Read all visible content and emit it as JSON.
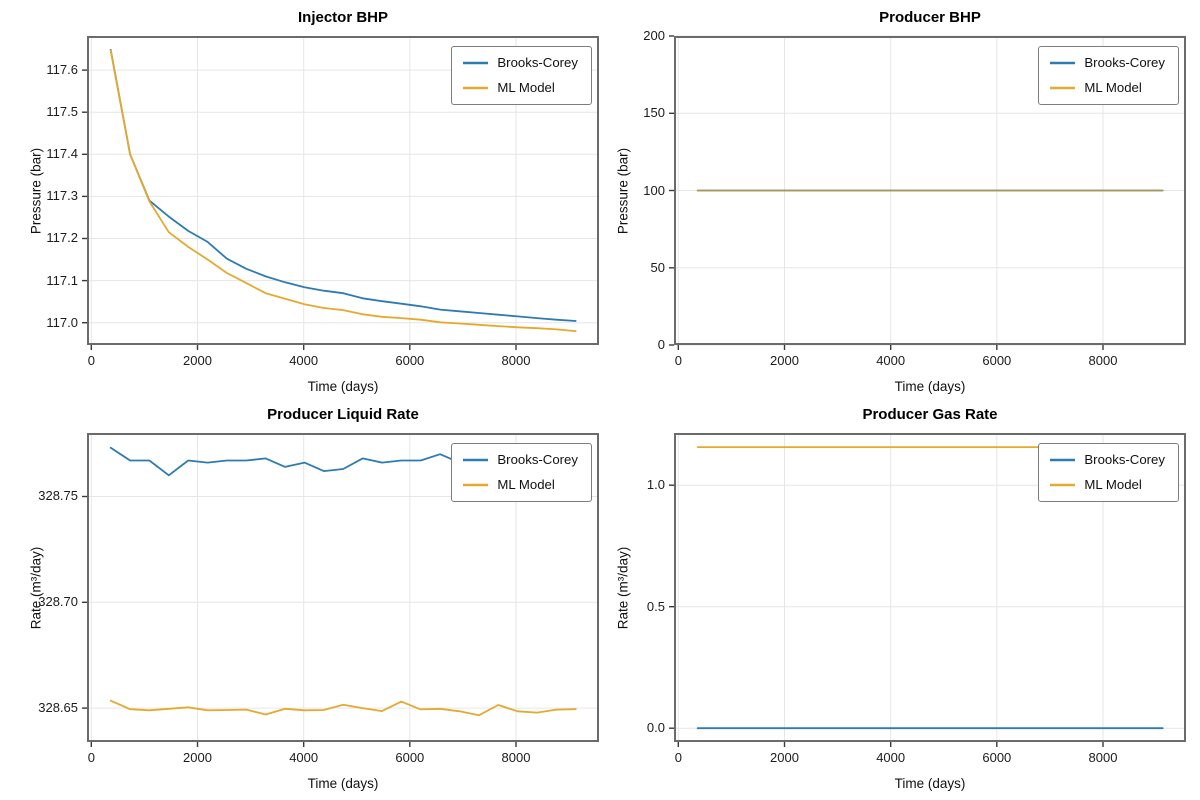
{
  "colors": {
    "brooks_corey": "#2e7bb1",
    "ml_model": "#e5a92e",
    "gridline": "#e6e6e6",
    "spine": "#6b6b6b",
    "tick_mark": "#3a3a3a",
    "legend_border": "#7d7d7d",
    "background": "#ffffff"
  },
  "chart_data": [
    {
      "id": "injector-bhp",
      "type": "line",
      "title": "Injector BHP",
      "xlabel": "Time (days)",
      "ylabel": "Pressure (bar)",
      "xlim": [
        -81,
        9563
      ],
      "ylim": [
        116.947,
        117.681
      ],
      "xticks": [
        0,
        2000,
        4000,
        6000,
        8000
      ],
      "xtick_labels": [
        "0",
        "2000",
        "4000",
        "6000",
        "8000"
      ],
      "yticks": [
        117.0,
        117.1,
        117.2,
        117.3,
        117.4,
        117.5,
        117.6
      ],
      "ytick_labels": [
        "117.0",
        "117.1",
        "117.2",
        "117.3",
        "117.4",
        "117.5",
        "117.6"
      ],
      "grid": true,
      "legend_position": "upper right",
      "x": [
        365,
        730,
        1095,
        1460,
        1825,
        2190,
        2555,
        2920,
        3285,
        3650,
        4015,
        4380,
        4745,
        5110,
        5475,
        5840,
        6205,
        6570,
        6935,
        7300,
        7665,
        8030,
        8395,
        8760,
        9125
      ],
      "series": [
        {
          "name": "Brooks-Corey",
          "color": "#2e7bb1",
          "values": [
            117.648,
            117.4,
            117.29,
            117.252,
            117.218,
            117.192,
            117.152,
            117.128,
            117.11,
            117.096,
            117.084,
            117.076,
            117.07,
            117.058,
            117.051,
            117.045,
            117.039,
            117.031,
            117.027,
            117.023,
            117.019,
            117.015,
            117.011,
            117.007,
            117.004
          ]
        },
        {
          "name": "ML Model",
          "color": "#e5a92e",
          "values": [
            117.646,
            117.4,
            117.288,
            117.215,
            117.18,
            117.15,
            117.118,
            117.094,
            117.07,
            117.057,
            117.044,
            117.035,
            117.03,
            117.02,
            117.014,
            117.011,
            117.007,
            117.001,
            116.998,
            116.995,
            116.992,
            116.989,
            116.987,
            116.984,
            116.98
          ]
        }
      ]
    },
    {
      "id": "producer-bhp",
      "type": "line",
      "title": "Producer BHP",
      "xlabel": "Time (days)",
      "ylabel": "Pressure (bar)",
      "xlim": [
        -81,
        9563
      ],
      "ylim": [
        0,
        200
      ],
      "xticks": [
        0,
        2000,
        4000,
        6000,
        8000
      ],
      "xtick_labels": [
        "0",
        "2000",
        "4000",
        "6000",
        "8000"
      ],
      "yticks": [
        0,
        50,
        100,
        150,
        200
      ],
      "ytick_labels": [
        "0",
        "50",
        "100",
        "150",
        "200"
      ],
      "grid": true,
      "legend_position": "upper right",
      "x": [
        365,
        730,
        1095,
        1460,
        1825,
        2190,
        2555,
        2920,
        3285,
        3650,
        4015,
        4380,
        4745,
        5110,
        5475,
        5840,
        6205,
        6570,
        6935,
        7300,
        7665,
        8030,
        8395,
        8760,
        9125
      ],
      "series": [
        {
          "name": "Brooks-Corey",
          "color": "#2e7bb1",
          "values": [
            100.0,
            100.0,
            100.0,
            100.0,
            100.0,
            100.0,
            100.0,
            100.0,
            100.0,
            100.0,
            100.0,
            100.0,
            100.0,
            100.0,
            100.0,
            100.0,
            100.0,
            100.0,
            100.0,
            100.0,
            100.0,
            100.0,
            100.0,
            100.0,
            100.0
          ]
        },
        {
          "name": "ML Model",
          "color": "#e5a92e",
          "render_opacity": 0.66,
          "values": [
            100.0,
            100.0,
            100.0,
            100.0,
            100.0,
            100.0,
            100.0,
            100.0,
            100.0,
            100.0,
            100.0,
            100.0,
            100.0,
            100.0,
            100.0,
            100.0,
            100.0,
            100.0,
            100.0,
            100.0,
            100.0,
            100.0,
            100.0,
            100.0,
            100.0
          ]
        }
      ]
    },
    {
      "id": "producer-liquid-rate",
      "type": "line",
      "title": "Producer Liquid Rate",
      "xlabel": "Time (days)",
      "ylabel": "Rate (m³/day)",
      "xlim": [
        -81,
        9563
      ],
      "ylim": [
        328.634,
        328.78
      ],
      "xticks": [
        0,
        2000,
        4000,
        6000,
        8000
      ],
      "xtick_labels": [
        "0",
        "2000",
        "4000",
        "6000",
        "8000"
      ],
      "yticks": [
        328.65,
        328.7,
        328.75
      ],
      "ytick_labels": [
        "328.65",
        "328.70",
        "328.75"
      ],
      "grid": true,
      "legend_position": "upper right",
      "x": [
        365,
        730,
        1095,
        1460,
        1825,
        2190,
        2555,
        2920,
        3285,
        3650,
        4015,
        4380,
        4745,
        5110,
        5475,
        5840,
        6205,
        6570,
        6935,
        7300,
        7665,
        8030,
        8395,
        8760,
        9125
      ],
      "series": [
        {
          "name": "Brooks-Corey",
          "color": "#2e7bb1",
          "values": [
            328.773,
            328.767,
            328.767,
            328.76,
            328.767,
            328.766,
            328.767,
            328.767,
            328.768,
            328.764,
            328.766,
            328.762,
            328.763,
            328.768,
            328.766,
            328.767,
            328.767,
            328.77,
            328.766,
            328.764,
            328.766,
            328.767,
            328.766,
            328.767,
            328.766
          ]
        },
        {
          "name": "ML Model",
          "color": "#e5a92e",
          "values": [
            328.6535,
            328.6495,
            328.649,
            328.6497,
            328.6504,
            328.649,
            328.6491,
            328.6493,
            328.647,
            328.6497,
            328.649,
            328.6491,
            328.6516,
            328.65,
            328.6486,
            328.6531,
            328.6494,
            328.6497,
            328.6485,
            328.6466,
            328.6515,
            328.6485,
            328.6479,
            328.6493,
            328.6495
          ]
        }
      ]
    },
    {
      "id": "producer-gas-rate",
      "type": "line",
      "title": "Producer Gas Rate",
      "xlabel": "Time (days)",
      "ylabel": "Rate (m³/day)",
      "xlim": [
        -81,
        9563
      ],
      "ylim": [
        -0.057,
        1.215
      ],
      "xticks": [
        0,
        2000,
        4000,
        6000,
        8000
      ],
      "xtick_labels": [
        "0",
        "2000",
        "4000",
        "6000",
        "8000"
      ],
      "yticks": [
        0.0,
        0.5,
        1.0
      ],
      "ytick_labels": [
        "0.0",
        "0.5",
        "1.0"
      ],
      "grid": true,
      "legend_position": "upper right",
      "x": [
        365,
        730,
        1095,
        1460,
        1825,
        2190,
        2555,
        2920,
        3285,
        3650,
        4015,
        4380,
        4745,
        5110,
        5475,
        5840,
        6205,
        6570,
        6935,
        7300,
        7665,
        8030,
        8395,
        8760,
        9125
      ],
      "series": [
        {
          "name": "Brooks-Corey",
          "color": "#2e7bb1",
          "values": [
            0.0,
            0.0,
            0.0,
            0.0,
            0.0,
            0.0,
            0.0,
            0.0,
            0.0,
            0.0,
            0.0,
            0.0,
            0.0,
            0.0,
            0.0,
            0.0,
            0.0,
            0.0,
            0.0,
            0.0,
            0.0,
            0.0,
            0.0,
            0.0,
            0.0
          ]
        },
        {
          "name": "ML Model",
          "color": "#e5a92e",
          "values": [
            1.157,
            1.157,
            1.157,
            1.157,
            1.157,
            1.157,
            1.157,
            1.157,
            1.157,
            1.157,
            1.157,
            1.157,
            1.157,
            1.157,
            1.157,
            1.157,
            1.157,
            1.157,
            1.157,
            1.157,
            1.157,
            1.157,
            1.157,
            1.157,
            1.157
          ]
        }
      ]
    }
  ]
}
